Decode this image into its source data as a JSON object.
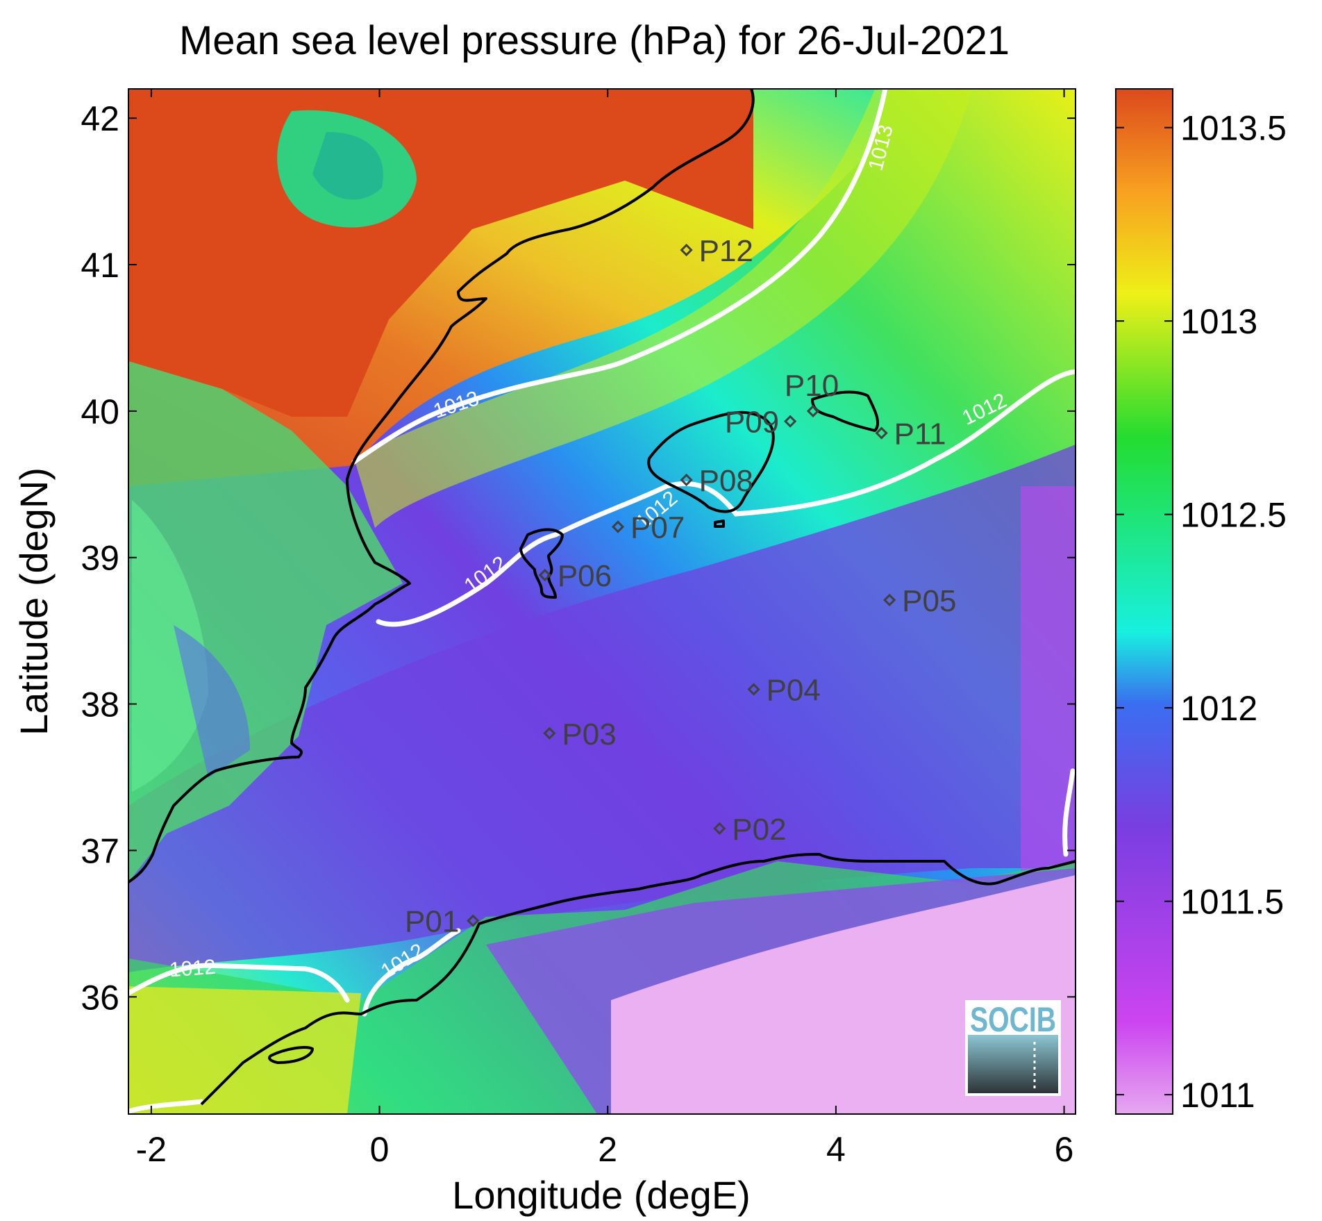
{
  "title": "Mean sea level pressure (hPa) for 26-Jul-2021",
  "x_axis": {
    "label": "Longitude (degE)",
    "ticks": [
      -2,
      0,
      2,
      4,
      6
    ],
    "range": [
      -2.2,
      6.1
    ]
  },
  "y_axis": {
    "label": "Latitude (degN)",
    "ticks": [
      36,
      37,
      38,
      39,
      40,
      41,
      42
    ],
    "range": [
      35.2,
      42.2
    ]
  },
  "colorbar": {
    "range": [
      1010.95,
      1013.6
    ],
    "ticks": [
      1011,
      1011.5,
      1012,
      1012.5,
      1013,
      1013.5
    ],
    "palette": [
      "#e6a8f0",
      "#cc44f0",
      "#7a3ee0",
      "#3a6ef0",
      "#18f0e0",
      "#24dc30",
      "#eef018",
      "#f8a020",
      "#dc4a1c"
    ]
  },
  "contours": [
    {
      "label": "1013",
      "value": 1013
    },
    {
      "label": "1012",
      "value": 1012
    }
  ],
  "stations": [
    {
      "id": "P01",
      "lon": 0.82,
      "lat": 36.52
    },
    {
      "id": "P02",
      "lon": 2.98,
      "lat": 37.15
    },
    {
      "id": "P03",
      "lon": 1.49,
      "lat": 37.8
    },
    {
      "id": "P04",
      "lon": 3.28,
      "lat": 38.1
    },
    {
      "id": "P05",
      "lon": 4.47,
      "lat": 38.71
    },
    {
      "id": "P06",
      "lon": 1.45,
      "lat": 38.88
    },
    {
      "id": "P07",
      "lon": 2.09,
      "lat": 39.21
    },
    {
      "id": "P08",
      "lon": 2.69,
      "lat": 39.53
    },
    {
      "id": "P09",
      "lon": 3.6,
      "lat": 39.93
    },
    {
      "id": "P10",
      "lon": 3.8,
      "lat": 40.0
    },
    {
      "id": "P11",
      "lon": 4.4,
      "lat": 39.85
    },
    {
      "id": "P12",
      "lon": 2.69,
      "lat": 41.1
    }
  ],
  "logo": {
    "text": "SOCIB"
  }
}
